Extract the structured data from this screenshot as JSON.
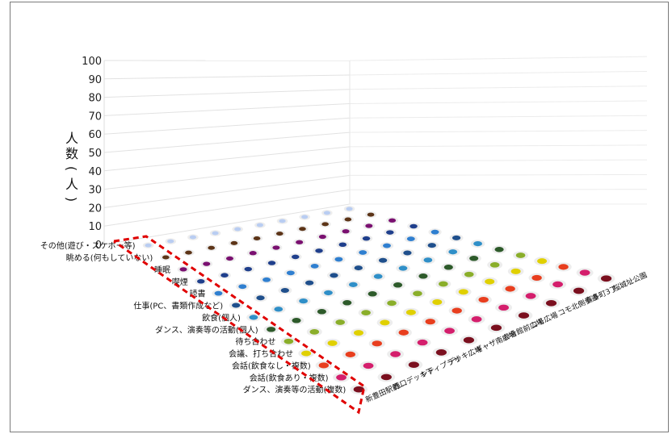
{
  "chart_data": {
    "type": "bar",
    "title": "",
    "ylabel": "人数(人)",
    "ylim": [
      0,
      100
    ],
    "yticks": [
      0,
      10,
      20,
      30,
      40,
      50,
      60,
      70,
      80,
      90,
      100
    ],
    "grid": true,
    "activities": [
      "その他(遊び・スケボー等)",
      "眺める(何もしていない)",
      "睡眠",
      "喫煙",
      "読書",
      "仕事(PC、書類作成など)",
      "飲食(個人)",
      "ダンス、演奏等の活動(個人)",
      "待ち合わせ",
      "会議、打ち合わせ",
      "会話(飲食なし・複数)",
      "会話(飲食あり・複数)",
      "ダンス、演奏等の活動(複数)"
    ],
    "locations": [
      "新豊田駅前…",
      "西口デッキ下",
      "シティプラザ",
      "デッキ広場",
      "ギャザ南広場",
      "参合館前広場",
      "コモ広場",
      "コモ北側歩道",
      "喜多町3丁…",
      "桜城址公園"
    ],
    "series_colors": [
      "#b9cdf2",
      "#5c3417",
      "#7a1070",
      "#1f3f8c",
      "#2f7fd0",
      "#1f4f8c",
      "#2f8fc8",
      "#2d5a2a",
      "#8aae2a",
      "#e0d000",
      "#e83e1e",
      "#d41e6c",
      "#7a0f1e"
    ],
    "values": [
      [
        0,
        0,
        0,
        0,
        0,
        0,
        0,
        0,
        0,
        0
      ],
      [
        0,
        0,
        0,
        0,
        0,
        0,
        0,
        0,
        0,
        0
      ],
      [
        0,
        0,
        0,
        0,
        0,
        0,
        0,
        0,
        0,
        0
      ],
      [
        0,
        0,
        0,
        0,
        0,
        0,
        0,
        0,
        0,
        0
      ],
      [
        0,
        0,
        0,
        0,
        0,
        0,
        0,
        0,
        0,
        0
      ],
      [
        0,
        0,
        0,
        0,
        0,
        0,
        0,
        0,
        0,
        0
      ],
      [
        0,
        0,
        0,
        0,
        0,
        0,
        0,
        0,
        0,
        0
      ],
      [
        0,
        0,
        0,
        0,
        0,
        0,
        0,
        0,
        0,
        0
      ],
      [
        0,
        0,
        0,
        0,
        0,
        0,
        0,
        0,
        0,
        0
      ],
      [
        0,
        0,
        0,
        0,
        0,
        0,
        0,
        0,
        0,
        0
      ],
      [
        0,
        0,
        0,
        0,
        0,
        0,
        0,
        0,
        0,
        0
      ],
      [
        0,
        0,
        0,
        0,
        0,
        0,
        0,
        0,
        0,
        0
      ],
      [
        0,
        0,
        0,
        0,
        0,
        0,
        0,
        0,
        0,
        0
      ]
    ]
  }
}
